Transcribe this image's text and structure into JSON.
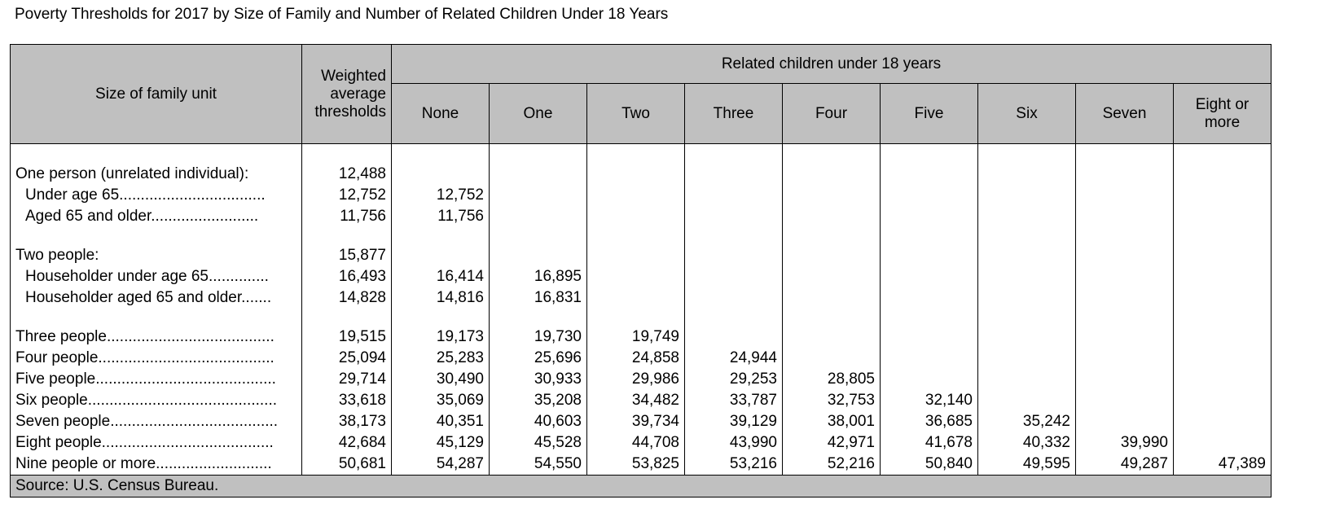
{
  "title": "Poverty Thresholds for 2017 by Size of Family and Number of Related Children Under 18 Years",
  "header": {
    "size_of_family_unit": "Size of family unit",
    "weighted_line1": "Weighted",
    "weighted_line2": "average",
    "weighted_line3": "thresholds",
    "related_children": "Related children under 18 years",
    "cols": [
      "None",
      "One",
      "Two",
      "Three",
      "Four",
      "Five",
      "Six",
      "Seven"
    ],
    "eight_line1": "Eight or",
    "eight_line2": "more"
  },
  "rows": [
    {
      "label": "One person (unrelated individual):",
      "weighted": "12,488",
      "values": []
    },
    {
      "label": "Under age 65..................................",
      "weighted": "12,752",
      "values": [
        "12,752"
      ]
    },
    {
      "label": "Aged 65 and older.........................",
      "weighted": "11,756",
      "values": [
        "11,756"
      ]
    },
    {
      "label": "Two people:",
      "weighted": "15,877",
      "values": []
    },
    {
      "label": "Householder under age 65..............",
      "weighted": "16,493",
      "values": [
        "16,414",
        "16,895"
      ]
    },
    {
      "label": "Householder aged 65 and older.......",
      "weighted": "14,828",
      "values": [
        "14,816",
        "16,831"
      ]
    },
    {
      "label": "Three people.......................................",
      "weighted": "19,515",
      "values": [
        "19,173",
        "19,730",
        "19,749"
      ]
    },
    {
      "label": "Four people.........................................",
      "weighted": "25,094",
      "values": [
        "25,283",
        "25,696",
        "24,858",
        "24,944"
      ]
    },
    {
      "label": "Five people..........................................",
      "weighted": "29,714",
      "values": [
        "30,490",
        "30,933",
        "29,986",
        "29,253",
        "28,805"
      ]
    },
    {
      "label": "Six people............................................",
      "weighted": "33,618",
      "values": [
        "35,069",
        "35,208",
        "34,482",
        "33,787",
        "32,753",
        "32,140"
      ]
    },
    {
      "label": "Seven people.......................................",
      "weighted": "38,173",
      "values": [
        "40,351",
        "40,603",
        "39,734",
        "39,129",
        "38,001",
        "36,685",
        "35,242"
      ]
    },
    {
      "label": "Eight people........................................",
      "weighted": "42,684",
      "values": [
        "45,129",
        "45,528",
        "44,708",
        "43,990",
        "42,971",
        "41,678",
        "40,332",
        "39,990"
      ]
    },
    {
      "label": "Nine people or more...........................",
      "weighted": "50,681",
      "values": [
        "54,287",
        "54,550",
        "53,825",
        "53,216",
        "52,216",
        "50,840",
        "49,595",
        "49,287",
        "47,389"
      ]
    }
  ],
  "source": "Source:  U.S. Census Bureau."
}
